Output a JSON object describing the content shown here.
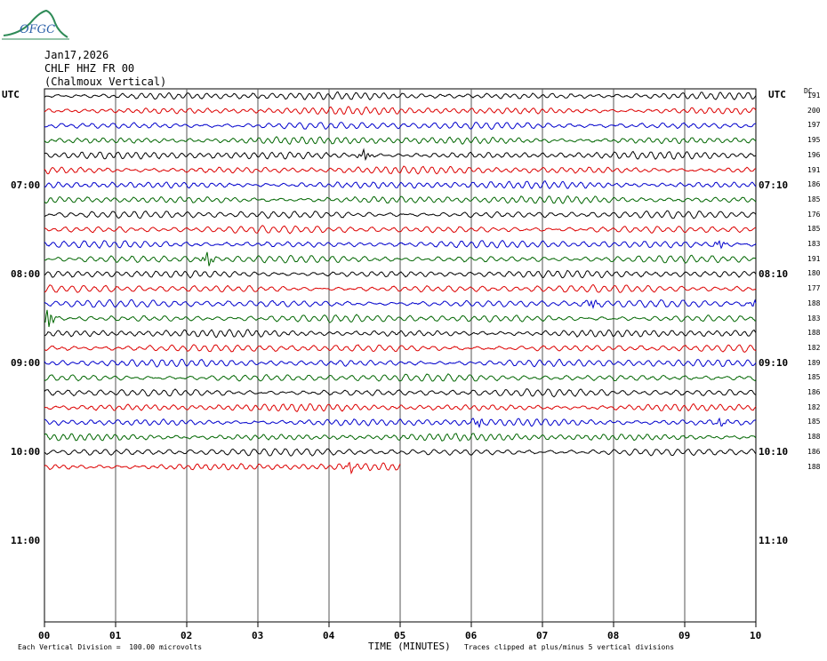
{
  "logo_text": "OFGC",
  "header": {
    "date": "Jan17,2026",
    "station": "CHLF HHZ FR 00",
    "location": "(Chalmoux Vertical)"
  },
  "axis": {
    "left_title": "UTC",
    "right_title": "UTC",
    "dc_label": "DC",
    "x_title": "TIME (MINUTES)",
    "left_times": [
      "07:00",
      "08:00",
      "09:00",
      "10:00",
      "11:00"
    ],
    "right_times": [
      "07:10",
      "08:10",
      "09:10",
      "10:10",
      "11:10"
    ]
  },
  "footer": {
    "division_note": "Each Vertical Division =  100.00 microvolts",
    "clip_note": "Traces clipped at plus/minus 5 vertical divisions"
  },
  "colors": {
    "black": "#000000",
    "red": "#dd0000",
    "blue": "#0000cc",
    "green": "#006600",
    "grid": "#555555"
  },
  "chart_data": {
    "type": "line",
    "title": "CHLF HHZ FR 00 (Chalmoux Vertical)",
    "xlabel": "TIME (MINUTES)",
    "ylabel": "UTC",
    "x_ticks": [
      "00",
      "01",
      "02",
      "03",
      "04",
      "05",
      "06",
      "07",
      "08",
      "09",
      "10"
    ],
    "xlim": [
      0,
      10
    ],
    "trace_colors_cycle": [
      "black",
      "red",
      "blue",
      "green"
    ],
    "dc_offsets": [
      191,
      200,
      197,
      195,
      196,
      191,
      186,
      185,
      176,
      185,
      183,
      191,
      180,
      177,
      188,
      183,
      188,
      182,
      189,
      185,
      186,
      182,
      185,
      188,
      186,
      188
    ],
    "last_trace_minutes": 5,
    "events": [
      {
        "trace": 4,
        "minute": 4.5,
        "amp": 1.6
      },
      {
        "trace": 11,
        "minute": 2.3,
        "amp": 2.2
      },
      {
        "trace": 10,
        "minute": 9.5,
        "amp": 1.2
      },
      {
        "trace": 15,
        "minute": 0.05,
        "amp": 3.2
      },
      {
        "trace": 14,
        "minute": 7.7,
        "amp": 1.4
      },
      {
        "trace": 14,
        "minute": 10.0,
        "amp": 1.2
      },
      {
        "trace": 22,
        "minute": 6.1,
        "amp": 1.3
      },
      {
        "trace": 22,
        "minute": 9.5,
        "amp": 1.1
      },
      {
        "trace": 25,
        "minute": 4.3,
        "amp": 1.3
      }
    ]
  }
}
